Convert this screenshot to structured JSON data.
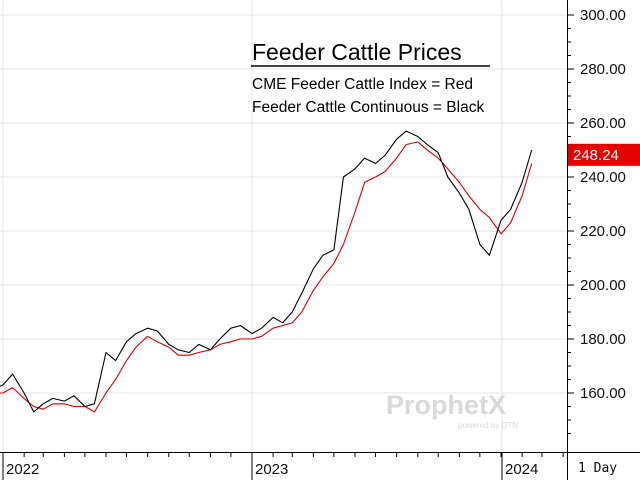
{
  "chart_data": {
    "type": "line",
    "title": "Feeder Cattle Prices",
    "annotations": [
      "CME Feeder Cattle Index = Red",
      "Feeder Cattle Continuous = Black"
    ],
    "ylim": [
      140,
      305
    ],
    "y_ticks": [
      "160.00",
      "180.00",
      "200.00",
      "220.00",
      "240.00",
      "260.00",
      "280.00",
      "300.00"
    ],
    "y_tick_values": [
      160,
      180,
      200,
      220,
      240,
      260,
      280,
      300
    ],
    "x_tick_labels": [
      "2022",
      "2023",
      "2024"
    ],
    "last_value_label": "248.24",
    "period_label": "1 Day",
    "grid": true,
    "series": [
      {
        "color": "#000000",
        "dates": [
          "2021-12-01",
          "2021-12-15",
          "2022-01-01",
          "2022-01-15",
          "2022-02-01",
          "2022-02-15",
          "2022-03-01",
          "2022-03-15",
          "2022-04-01",
          "2022-04-15",
          "2022-05-01",
          "2022-05-15",
          "2022-06-01",
          "2022-06-15",
          "2022-07-01",
          "2022-07-15",
          "2022-08-01",
          "2022-08-15",
          "2022-09-01",
          "2022-09-15",
          "2022-10-01",
          "2022-10-15",
          "2022-11-01",
          "2022-11-15",
          "2022-12-01",
          "2022-12-15",
          "2023-01-01",
          "2023-01-15",
          "2023-02-01",
          "2023-02-15",
          "2023-03-01",
          "2023-03-15",
          "2023-04-01",
          "2023-04-15",
          "2023-05-01",
          "2023-05-15",
          "2023-06-01",
          "2023-06-15",
          "2023-07-01",
          "2023-07-15",
          "2023-08-01",
          "2023-08-15",
          "2023-09-01",
          "2023-09-15",
          "2023-10-01",
          "2023-10-15",
          "2023-11-01",
          "2023-11-15",
          "2023-12-01",
          "2023-12-15",
          "2024-01-01",
          "2024-01-15",
          "2024-02-01",
          "2024-02-15"
        ],
        "values": [
          166,
          161,
          163,
          167,
          160,
          153,
          156,
          158,
          157,
          159,
          155,
          156,
          175,
          172,
          179,
          182,
          184,
          183,
          178,
          176,
          175,
          178,
          176,
          180,
          184,
          185,
          182,
          184,
          188,
          186,
          190,
          197,
          206,
          211,
          213,
          240,
          243,
          247,
          245,
          248,
          254,
          257,
          255,
          252,
          249,
          240,
          234,
          228,
          215,
          211,
          224,
          228,
          238,
          250
        ]
      },
      {
        "color": "#d40000",
        "dates": [
          "2021-12-01",
          "2021-12-15",
          "2022-01-01",
          "2022-01-15",
          "2022-02-01",
          "2022-02-15",
          "2022-03-01",
          "2022-03-15",
          "2022-04-01",
          "2022-04-15",
          "2022-05-01",
          "2022-05-15",
          "2022-06-01",
          "2022-06-15",
          "2022-07-01",
          "2022-07-15",
          "2022-08-01",
          "2022-08-15",
          "2022-09-01",
          "2022-09-15",
          "2022-10-01",
          "2022-10-15",
          "2022-11-01",
          "2022-11-15",
          "2022-12-01",
          "2022-12-15",
          "2023-01-01",
          "2023-01-15",
          "2023-02-01",
          "2023-02-15",
          "2023-03-01",
          "2023-03-15",
          "2023-04-01",
          "2023-04-15",
          "2023-05-01",
          "2023-05-15",
          "2023-06-01",
          "2023-06-15",
          "2023-07-01",
          "2023-07-15",
          "2023-08-01",
          "2023-08-15",
          "2023-09-01",
          "2023-09-15",
          "2023-10-01",
          "2023-10-15",
          "2023-11-01",
          "2023-11-15",
          "2023-12-01",
          "2023-12-15",
          "2024-01-01",
          "2024-01-15",
          "2024-02-01",
          "2024-02-15"
        ],
        "values": [
          163,
          160,
          160,
          162,
          158,
          155,
          154,
          156,
          156,
          155,
          155,
          153,
          160,
          165,
          172,
          177,
          181,
          179,
          177,
          174,
          174,
          175,
          176,
          178,
          179,
          180,
          180,
          181,
          184,
          185,
          186,
          190,
          198,
          203,
          208,
          215,
          227,
          238,
          240,
          242,
          247,
          252,
          253,
          250,
          247,
          243,
          238,
          233,
          228,
          225,
          219,
          223,
          233,
          245
        ]
      }
    ]
  },
  "colors": {
    "black_series": "#000000",
    "red_series": "#d40000",
    "badge": "#e50000",
    "grid": "#e6e6e6"
  },
  "watermark": {
    "brand": "ProphetX",
    "tagline": "powered by DTN"
  }
}
